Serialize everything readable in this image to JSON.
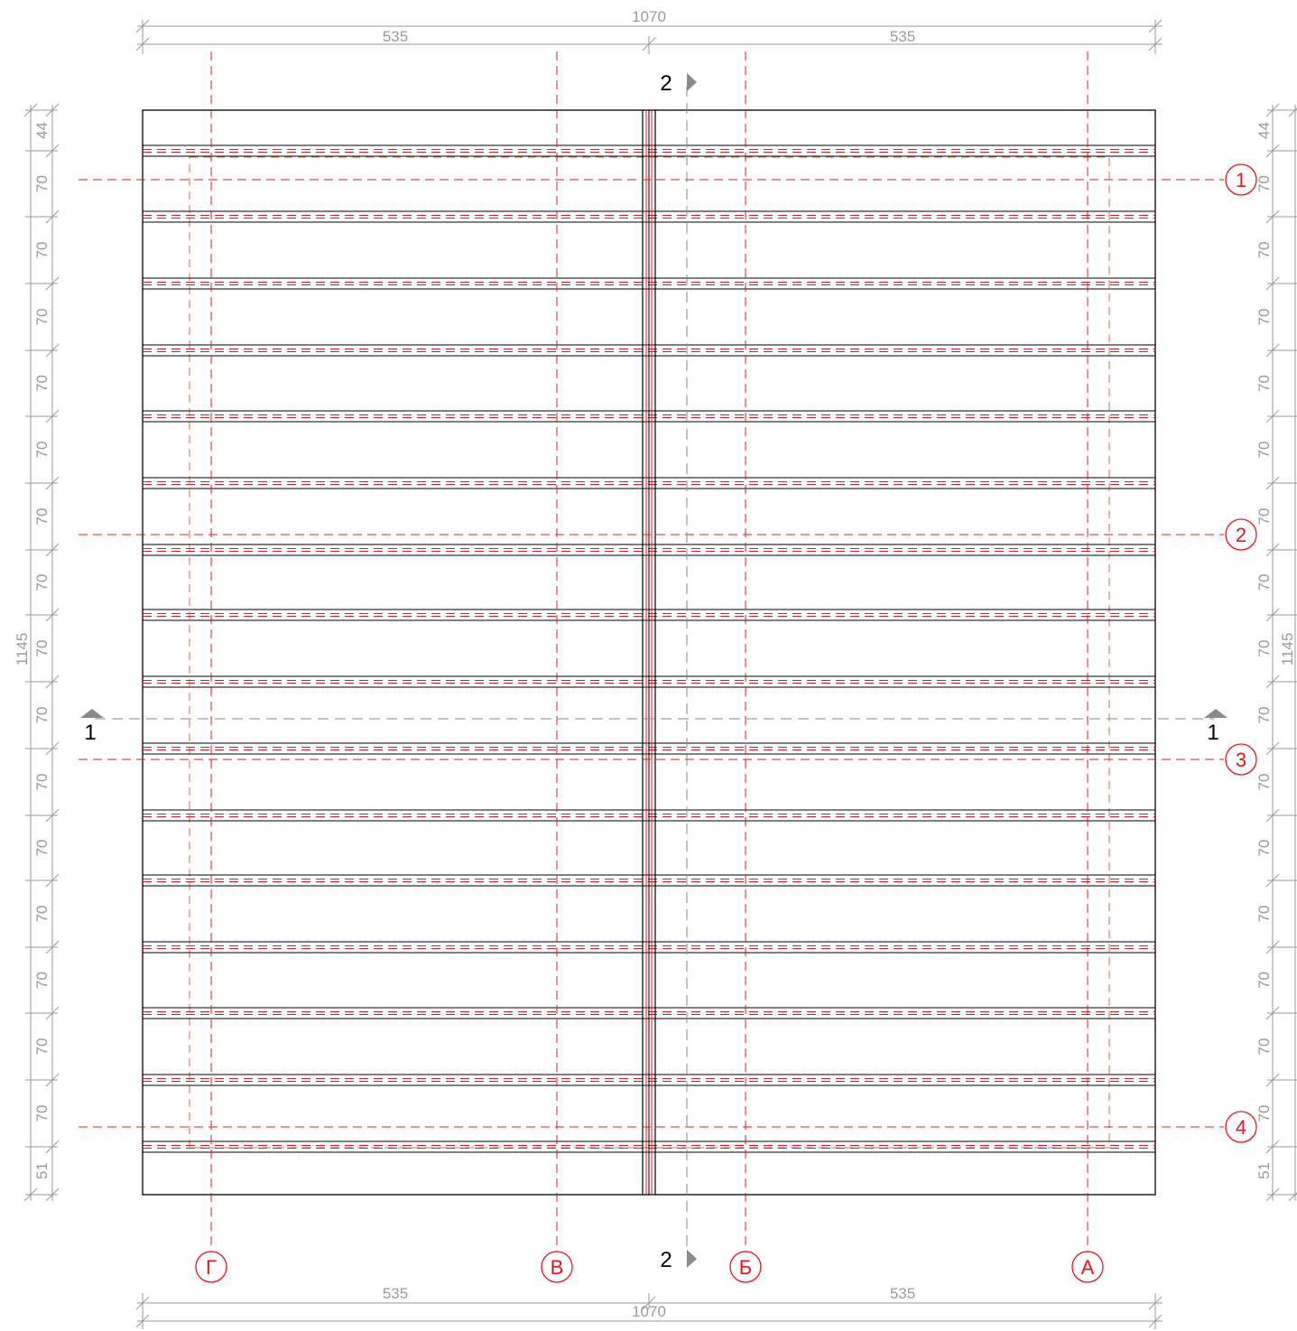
{
  "colors": {
    "outline": "#000000",
    "axis": "#e8141b",
    "dimension": "#9a9a9a",
    "section": "#8a8a8a",
    "inner_dash": "#e86a3a"
  },
  "dimensions": {
    "top_total": "1070",
    "top_halves": [
      "535",
      "535"
    ],
    "bottom_total": "1070",
    "bottom_halves": [
      "535",
      "535"
    ],
    "side_total": "1145",
    "side_segments": [
      "44",
      "70",
      "70",
      "70",
      "70",
      "70",
      "70",
      "70",
      "70",
      "70",
      "70",
      "70",
      "70",
      "70",
      "70",
      "70",
      "51"
    ]
  },
  "sections": {
    "horizontal_label": "1",
    "vertical_label": "2"
  },
  "grid_axes": {
    "rows": [
      "1",
      "2",
      "3",
      "4"
    ],
    "columns": [
      "Г",
      "В",
      "Б",
      "А"
    ]
  }
}
